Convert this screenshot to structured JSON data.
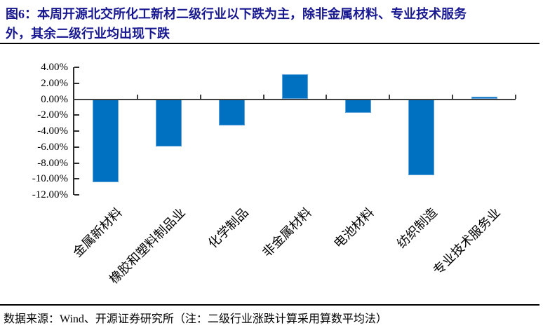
{
  "figure": {
    "title_line1": "图6：本周开源北交所化工新材二级行业以下跌为主，除非金属材料、专业技术服务",
    "title_line2": "外，其余二级行业均出现下跌",
    "source_note": "数据来源：Wind、开源证券研究所（注：二级行业涨跌计算采用算数平均法）"
  },
  "colors": {
    "title_navy": "#181890",
    "bar_blue": "#0070C0",
    "bar_edge": "#5FA4DC",
    "axis_gray": "#404040",
    "text_black": "#000000"
  },
  "chart_data": {
    "type": "bar",
    "title": "",
    "xlabel": "",
    "ylabel": "",
    "unit": "%",
    "categories": [
      "金属新材料",
      "橡胶和塑料制品业",
      "化学制品",
      "非金属材料",
      "电池材料",
      "纺织制造",
      "专业技术服务业"
    ],
    "values": [
      -10.4,
      -5.9,
      -3.3,
      3.1,
      -1.7,
      -9.5,
      0.3
    ],
    "ylim": [
      -12,
      4
    ],
    "y_ticks": [
      {
        "v": 4,
        "label": "4.00%"
      },
      {
        "v": 2,
        "label": "2.00%"
      },
      {
        "v": 0,
        "label": "0.00%"
      },
      {
        "v": -2,
        "label": "-2.00%"
      },
      {
        "v": -4,
        "label": "-4.00%"
      },
      {
        "v": -6,
        "label": "-6.00%"
      },
      {
        "v": -8,
        "label": "-8.00%"
      },
      {
        "v": -10,
        "label": "-10.00%"
      },
      {
        "v": -12,
        "label": "-12.00%"
      }
    ],
    "grid": false,
    "legend_position": "none",
    "bar_color": "#0070C0"
  }
}
